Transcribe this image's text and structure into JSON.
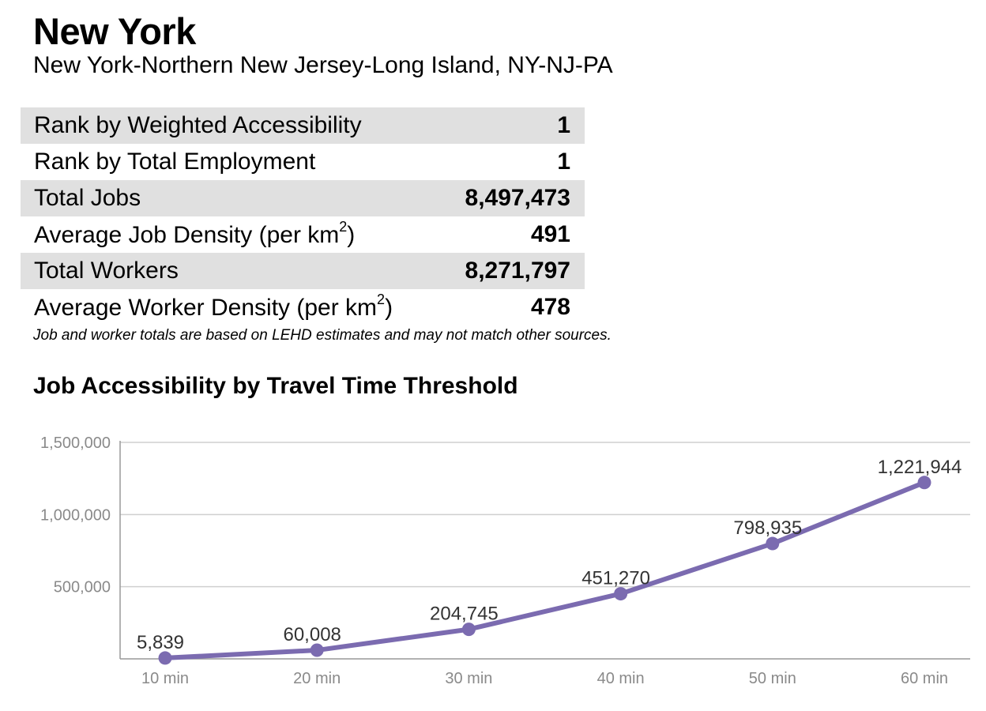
{
  "header": {
    "title": "New York",
    "subtitle": "New York-Northern New Jersey-Long Island, NY-NJ-PA"
  },
  "stats": [
    {
      "label": "Rank by Weighted Accessibility",
      "value": "1"
    },
    {
      "label": "Rank by Total Employment",
      "value": "1"
    },
    {
      "label": "Total Jobs",
      "value": "8,497,473"
    },
    {
      "label": "Average Job Density (per km",
      "sup": "2",
      "suffix": ")",
      "value": "491"
    },
    {
      "label": "Total Workers",
      "value": "8,271,797"
    },
    {
      "label": "Average Worker Density (per km",
      "sup": "2",
      "suffix": ")",
      "value": "478"
    }
  ],
  "footnote": "Job and worker totals are based on LEHD estimates and may not match other sources.",
  "chart_data": {
    "type": "line",
    "title": "Job Accessibility by Travel Time Threshold",
    "xlabel": "",
    "ylabel": "",
    "categories": [
      "10 min",
      "20 min",
      "30 min",
      "40 min",
      "50 min",
      "60 min"
    ],
    "values": [
      5839,
      60008,
      204745,
      451270,
      798935,
      1221944
    ],
    "data_labels": [
      "5,839",
      "60,008",
      "204,745",
      "451,270",
      "798,935",
      "1,221,944"
    ],
    "yticks": [
      500000,
      1000000,
      1500000
    ],
    "ytick_labels": [
      "500,000",
      "1,000,000",
      "1,500,000"
    ],
    "ylim": [
      0,
      1500000
    ],
    "grid": true,
    "legend": "none",
    "colors": {
      "line": "#7b6bb0",
      "grid": "#cfcfcf",
      "axis": "#999999"
    }
  }
}
